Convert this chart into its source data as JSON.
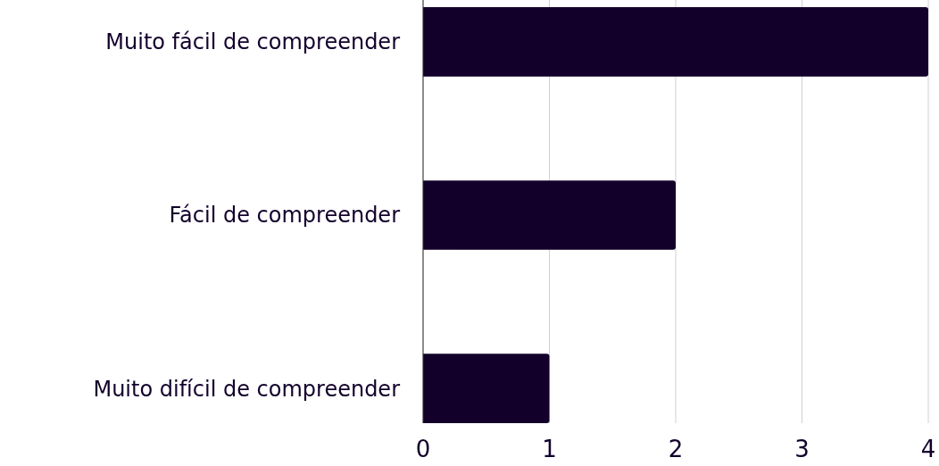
{
  "chart_data": {
    "type": "bar",
    "orientation": "horizontal",
    "categories": [
      "Muito fácil de compreender",
      "Fácil de compreender",
      "Muito difícil de compreender"
    ],
    "values": [
      4,
      2,
      1
    ],
    "color": "#12002b",
    "xlim": [
      0,
      4
    ],
    "xticks": [
      0,
      1,
      2,
      3,
      4
    ],
    "grid": "x"
  }
}
